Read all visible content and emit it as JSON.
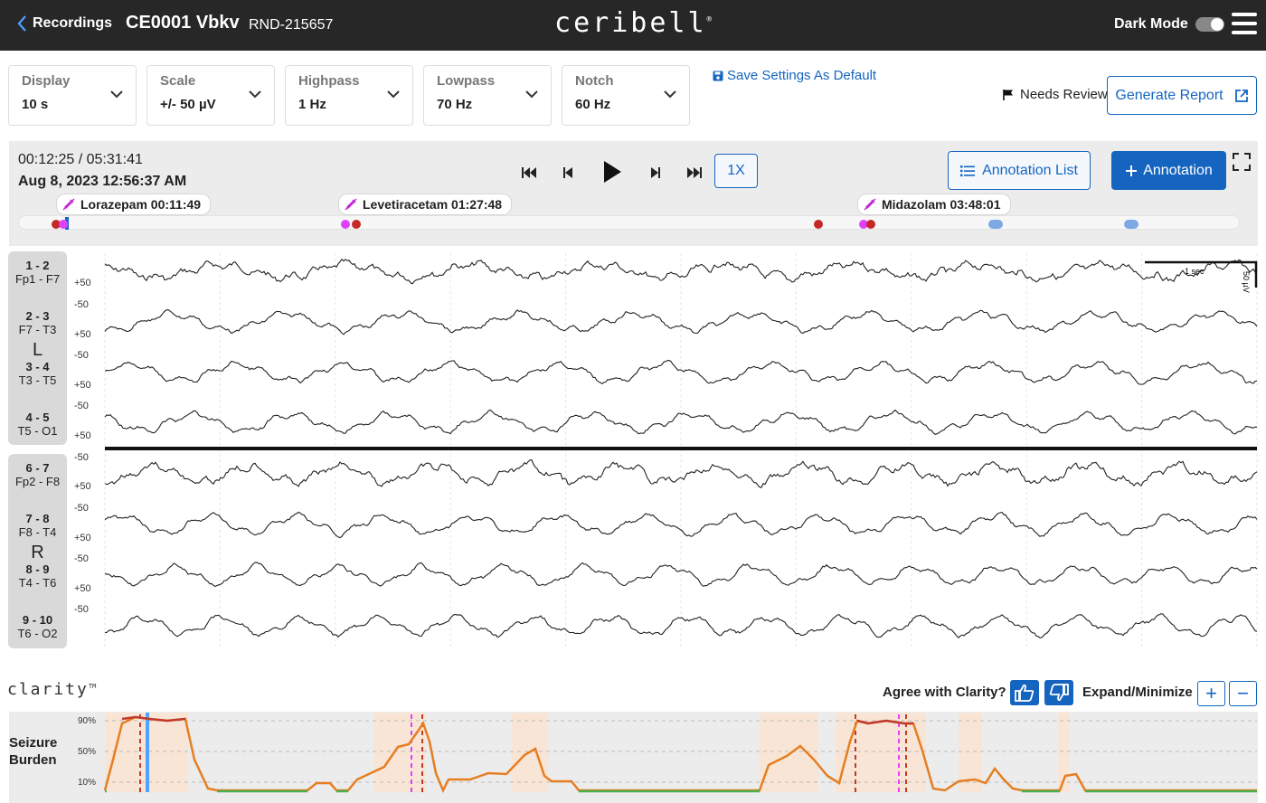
{
  "topbar": {
    "back_label": "Recordings",
    "recording_name": "CE0001 Vbkv",
    "recording_id": "RND-215657",
    "logo": "ceribell",
    "logo_mark": "®",
    "dark_mode_label": "Dark Mode",
    "dark_mode_on": false
  },
  "settings": [
    {
      "label": "Display",
      "value": "10 s"
    },
    {
      "label": "Scale",
      "value": "+/- 50 µV"
    },
    {
      "label": "Highpass",
      "value": "1 Hz"
    },
    {
      "label": "Lowpass",
      "value": "70 Hz"
    },
    {
      "label": "Notch",
      "value": "60 Hz"
    }
  ],
  "actions": {
    "save_default": "Save Settings As Default",
    "needs_review": "Needs Review",
    "generate_report": "Generate Report"
  },
  "playback": {
    "time": "00:12:25 / 05:31:41",
    "date": "Aug 8, 2023 12:56:37 AM",
    "speed": "1X",
    "annotation_list": "Annotation List",
    "add_annotation": "Annotation",
    "position_fraction": 0.0374
  },
  "medications": [
    {
      "label": "Lorazepam 00:11:49"
    },
    {
      "label": "Levetiracetam 01:27:48"
    },
    {
      "label": "Midazolam 03:48:01"
    }
  ],
  "timeline_markers": [
    {
      "kind": "dot",
      "color": "#c62828",
      "at": 0.03
    },
    {
      "kind": "dot",
      "color": "#e040fb",
      "at": 0.036
    },
    {
      "kind": "dot",
      "color": "#e040fb",
      "at": 0.267
    },
    {
      "kind": "dot",
      "color": "#c62828",
      "at": 0.276
    },
    {
      "kind": "dot",
      "color": "#c62828",
      "at": 0.654
    },
    {
      "kind": "dot",
      "color": "#e040fb",
      "at": 0.691
    },
    {
      "kind": "dot",
      "color": "#c62828",
      "at": 0.697
    },
    {
      "kind": "pill",
      "color": "#7aa9e4",
      "at": 0.797
    },
    {
      "kind": "pill",
      "color": "#7aa9e4",
      "at": 0.908
    }
  ],
  "eeg": {
    "left_label": "L",
    "right_label": "R",
    "channels": [
      {
        "num": "1 - 2",
        "lead": "Fp1 - F7"
      },
      {
        "num": "2 - 3",
        "lead": "F7 - T3"
      },
      {
        "num": "3 - 4",
        "lead": "T3 - T5"
      },
      {
        "num": "4 - 5",
        "lead": "T5 - O1"
      },
      {
        "num": "6 - 7",
        "lead": "Fp2 - F8"
      },
      {
        "num": "7 - 8",
        "lead": "F8 - T4"
      },
      {
        "num": "8 - 9",
        "lead": "T4 - T6"
      },
      {
        "num": "9 - 10",
        "lead": "T6 - O2"
      }
    ],
    "scale_plus": "+50",
    "scale_minus": "-50",
    "calibration_time": "1 sec",
    "calibration_amp": "50 µV"
  },
  "clarity": {
    "logo": "clarity",
    "logo_mark": "TM",
    "agree_label": "Agree with Clarity?",
    "expand_label": "Expand/Minimize",
    "expand_plus": "+",
    "expand_minus": "−",
    "burden_label_1": "Seizure",
    "burden_label_2": "Burden",
    "pct_labels": [
      "90%",
      "50%",
      "10%"
    ]
  }
}
